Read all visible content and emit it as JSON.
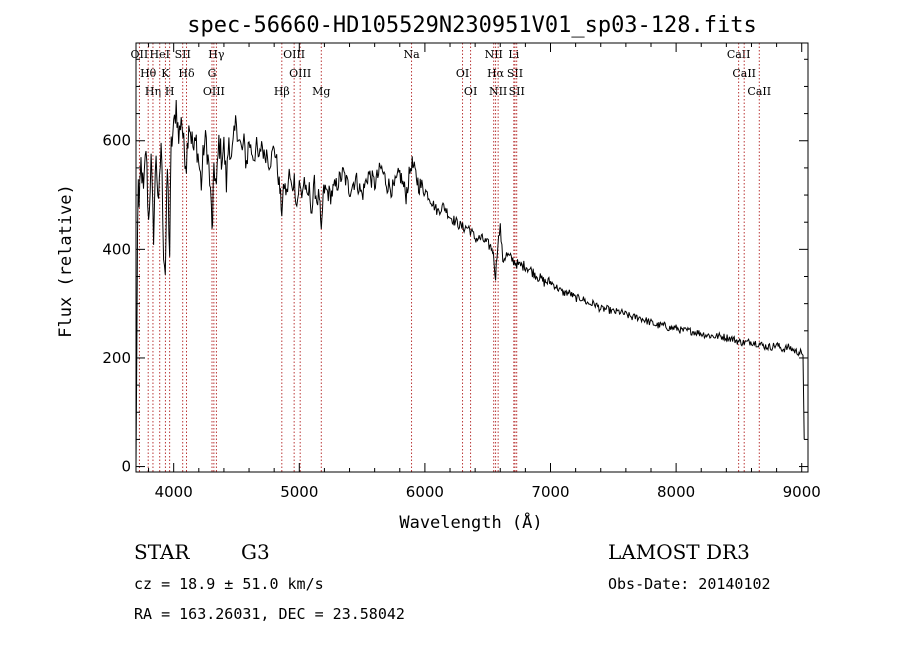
{
  "chart_data": {
    "type": "line",
    "title": "spec-56660-HD105529N230951V01_sp03-128.fits",
    "xlabel": "Wavelength (Å)",
    "ylabel": "Flux (relative)",
    "xlim": [
      3700,
      9050
    ],
    "ylim": [
      -10,
      780
    ],
    "x_ticks": [
      4000,
      5000,
      6000,
      7000,
      8000,
      9000
    ],
    "y_ticks": [
      0,
      200,
      400,
      600
    ],
    "x_tick_labels": [
      "4000",
      "5000",
      "6000",
      "7000",
      "8000",
      "9000"
    ],
    "y_tick_labels": [
      "0",
      "200",
      "400",
      "600"
    ],
    "grid": false,
    "series": [
      {
        "name": "flux",
        "x": [
          3700,
          3712,
          3718,
          3725,
          3740,
          3760,
          3780,
          3800,
          3820,
          3840,
          3860,
          3880,
          3900,
          3920,
          3933,
          3950,
          3968,
          3980,
          4000,
          4020,
          4040,
          4060,
          4080,
          4101,
          4120,
          4140,
          4160,
          4180,
          4200,
          4220,
          4240,
          4260,
          4280,
          4300,
          4310,
          4320,
          4340,
          4360,
          4380,
          4400,
          4420,
          4440,
          4460,
          4480,
          4500,
          4520,
          4540,
          4560,
          4580,
          4600,
          4620,
          4640,
          4660,
          4680,
          4700,
          4720,
          4740,
          4760,
          4780,
          4800,
          4820,
          4840,
          4861,
          4880,
          4900,
          4920,
          4940,
          4960,
          4980,
          5000,
          5020,
          5040,
          5060,
          5080,
          5100,
          5120,
          5140,
          5160,
          5175,
          5190,
          5200,
          5250,
          5300,
          5350,
          5400,
          5450,
          5500,
          5550,
          5600,
          5650,
          5700,
          5750,
          5800,
          5850,
          5893,
          5950,
          6000,
          6050,
          6100,
          6150,
          6200,
          6250,
          6300,
          6350,
          6400,
          6450,
          6500,
          6540,
          6563,
          6580,
          6600,
          6620,
          6650,
          6700,
          6750,
          6800,
          6850,
          6900,
          6950,
          7000,
          7050,
          7100,
          7150,
          7200,
          7250,
          7300,
          7350,
          7400,
          7450,
          7500,
          7550,
          7600,
          7650,
          7700,
          7750,
          7800,
          7850,
          7900,
          7950,
          8000,
          8050,
          8100,
          8150,
          8200,
          8250,
          8300,
          8350,
          8400,
          8450,
          8500,
          8542,
          8600,
          8662,
          8700,
          8750,
          8800,
          8850,
          8900,
          8950,
          8990,
          9000,
          9010,
          9020
        ],
        "values": [
          0,
          420,
          540,
          470,
          560,
          500,
          590,
          450,
          560,
          430,
          580,
          470,
          600,
          400,
          360,
          550,
          390,
          590,
          620,
          670,
          600,
          650,
          590,
          560,
          640,
          610,
          580,
          600,
          560,
          520,
          590,
          600,
          550,
          470,
          430,
          560,
          510,
          600,
          570,
          590,
          520,
          610,
          560,
          600,
          640,
          600,
          580,
          590,
          560,
          600,
          580,
          570,
          590,
          560,
          600,
          570,
          580,
          560,
          570,
          590,
          560,
          520,
          470,
          520,
          500,
          540,
          510,
          530,
          480,
          520,
          500,
          530,
          490,
          510,
          470,
          520,
          490,
          500,
          420,
          500,
          510,
          500,
          520,
          540,
          510,
          530,
          500,
          540,
          520,
          550,
          520,
          510,
          540,
          500,
          560,
          520,
          510,
          490,
          470,
          480,
          460,
          450,
          440,
          440,
          420,
          420,
          410,
          400,
          350,
          410,
          440,
          380,
          390,
          380,
          370,
          370,
          360,
          350,
          340,
          340,
          330,
          320,
          320,
          310,
          310,
          300,
          300,
          290,
          290,
          285,
          285,
          280,
          275,
          275,
          270,
          265,
          260,
          260,
          255,
          255,
          250,
          250,
          248,
          245,
          242,
          240,
          240,
          238,
          235,
          230,
          228,
          230,
          226,
          222,
          220,
          224,
          216,
          220,
          212,
          210,
          208,
          205,
          50
        ]
      }
    ],
    "line_markers": [
      {
        "label": "OII",
        "wavelength": 3727
      },
      {
        "label": "Hθ",
        "wavelength": 3797
      },
      {
        "label": "Hη",
        "wavelength": 3835
      },
      {
        "label": "HeI",
        "wavelength": 3889
      },
      {
        "label": "K",
        "wavelength": 3934
      },
      {
        "label": "H",
        "wavelength": 3968
      },
      {
        "label": "SII",
        "wavelength": 4072
      },
      {
        "label": "Hδ",
        "wavelength": 4102
      },
      {
        "label": "OIII",
        "wavelength": 4320
      },
      {
        "label": "Hγ",
        "wavelength": 4340
      },
      {
        "label": "G",
        "wavelength": 4305
      },
      {
        "label": "Hβ",
        "wavelength": 4861
      },
      {
        "label": "OIII",
        "wavelength": 4959
      },
      {
        "label": "OIII",
        "wavelength": 5007
      },
      {
        "label": "Mg",
        "wavelength": 5175
      },
      {
        "label": "Na",
        "wavelength": 5894
      },
      {
        "label": "OI",
        "wavelength": 6300
      },
      {
        "label": "OI",
        "wavelength": 6364
      },
      {
        "label": "NII",
        "wavelength": 6548
      },
      {
        "label": "Hα",
        "wavelength": 6563
      },
      {
        "label": "NII",
        "wavelength": 6583
      },
      {
        "label": "Li",
        "wavelength": 6708
      },
      {
        "label": "SII",
        "wavelength": 6717
      },
      {
        "label": "SII",
        "wavelength": 6731
      },
      {
        "label": "CaII",
        "wavelength": 8498
      },
      {
        "label": "CaII",
        "wavelength": 8542
      },
      {
        "label": "CaII",
        "wavelength": 8662
      }
    ]
  },
  "info": {
    "object_class": "STAR",
    "subclass": "G3",
    "survey": "LAMOST DR3",
    "redshift": "cz = 18.9 ± 51.0 km/s",
    "obs_date": "Obs-Date: 20140102",
    "coords": "RA = 163.26031, DEC =  23.58042"
  }
}
